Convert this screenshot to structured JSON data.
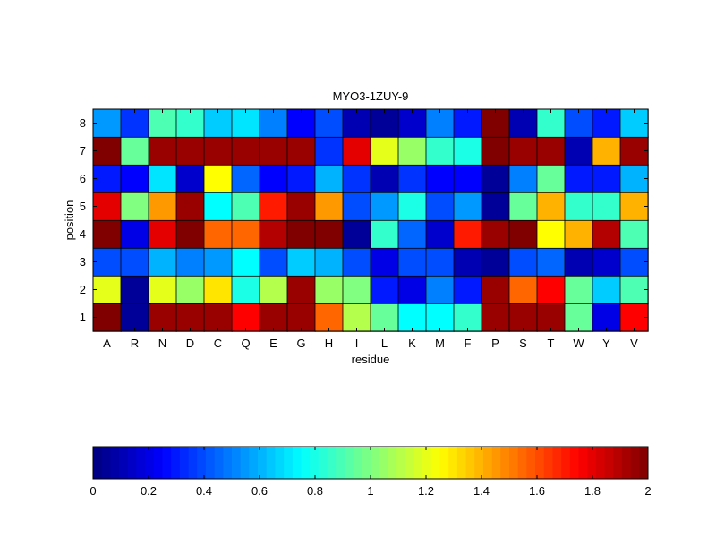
{
  "chart_data": [
    {
      "type": "heatmap",
      "title": "MYO3-1ZUY-9",
      "xlabel": "residue",
      "ylabel": "position",
      "x_categories": [
        "A",
        "R",
        "N",
        "D",
        "C",
        "Q",
        "E",
        "G",
        "H",
        "I",
        "L",
        "K",
        "M",
        "F",
        "P",
        "S",
        "T",
        "W",
        "Y",
        "V"
      ],
      "y_categories": [
        "1",
        "2",
        "3",
        "4",
        "5",
        "6",
        "7",
        "8"
      ],
      "colormap": "jet",
      "clim": [
        0,
        2
      ],
      "grid": false,
      "values": [
        [
          2.0,
          0.05,
          1.95,
          1.95,
          1.95,
          1.75,
          1.95,
          1.95,
          1.55,
          1.1,
          0.95,
          0.75,
          0.75,
          0.85,
          1.95,
          1.95,
          1.95,
          0.95,
          0.2,
          1.75
        ],
        [
          1.2,
          0.05,
          1.2,
          1.05,
          1.3,
          0.8,
          1.1,
          1.95,
          1.05,
          1.0,
          0.3,
          0.2,
          0.5,
          0.3,
          1.95,
          1.55,
          1.75,
          0.95,
          0.65,
          0.9
        ],
        [
          0.4,
          0.4,
          0.6,
          0.5,
          0.55,
          0.75,
          0.4,
          0.65,
          0.6,
          0.4,
          0.2,
          0.4,
          0.4,
          0.1,
          0.05,
          0.4,
          0.45,
          0.1,
          0.15,
          0.4
        ],
        [
          2.0,
          0.2,
          1.8,
          2.0,
          1.55,
          1.55,
          1.9,
          2.0,
          2.0,
          0.05,
          0.85,
          0.45,
          0.15,
          1.7,
          1.95,
          2.0,
          1.25,
          1.4,
          1.9,
          0.9
        ],
        [
          1.8,
          1.0,
          1.45,
          1.95,
          0.75,
          0.9,
          1.7,
          1.95,
          1.45,
          0.4,
          0.55,
          0.8,
          0.4,
          0.55,
          0.05,
          0.95,
          1.4,
          0.85,
          0.85,
          1.4
        ],
        [
          0.3,
          0.25,
          0.7,
          0.15,
          1.25,
          0.45,
          0.25,
          0.3,
          0.6,
          0.35,
          0.1,
          0.35,
          0.25,
          0.25,
          0.05,
          0.5,
          0.95,
          0.3,
          0.3,
          0.6
        ],
        [
          2.0,
          0.95,
          1.95,
          1.95,
          1.95,
          1.95,
          1.95,
          1.95,
          0.35,
          1.8,
          1.2,
          1.05,
          0.85,
          0.8,
          2.0,
          1.95,
          1.95,
          0.1,
          1.4,
          1.95
        ],
        [
          0.55,
          0.35,
          0.9,
          0.85,
          0.65,
          0.7,
          0.5,
          0.25,
          0.4,
          0.1,
          0.05,
          0.15,
          0.5,
          0.3,
          2.0,
          0.1,
          0.85,
          0.4,
          0.3,
          0.65
        ]
      ]
    },
    {
      "type": "colorbar",
      "colormap": "jet",
      "range": [
        0,
        2
      ],
      "tick_labels": [
        "0",
        "0.2",
        "0.4",
        "0.6",
        "0.8",
        "1",
        "1.2",
        "1.4",
        "1.6",
        "1.8",
        "2"
      ]
    }
  ]
}
